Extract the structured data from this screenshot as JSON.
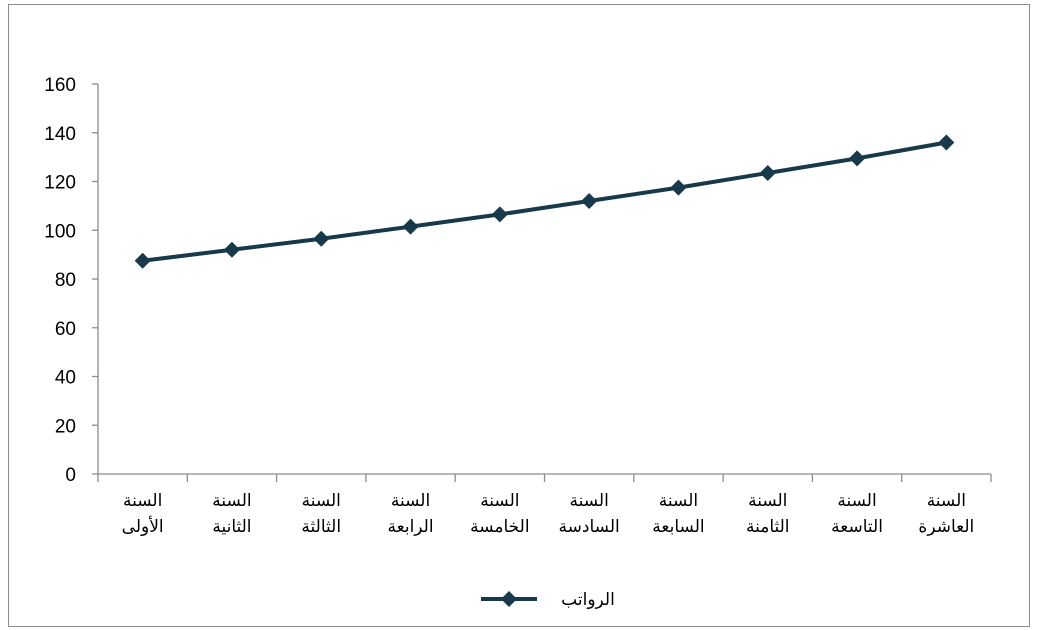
{
  "chart_data": {
    "type": "line",
    "categories": [
      [
        "السنة",
        "الأولى"
      ],
      [
        "السنة",
        "الثانية"
      ],
      [
        "السنة",
        "الثالثة"
      ],
      [
        "السنة",
        "الرابعة"
      ],
      [
        "السنة",
        "الخامسة"
      ],
      [
        "السنة",
        "السادسة"
      ],
      [
        "السنة",
        "السابعة"
      ],
      [
        "السنة",
        "الثامنة"
      ],
      [
        "السنة",
        "التاسعة"
      ],
      [
        "السنة",
        "العاشرة"
      ]
    ],
    "series": [
      {
        "name": "الرواتب",
        "values": [
          87.5,
          92,
          96.5,
          101.5,
          106.5,
          112,
          117.5,
          123.5,
          129.5,
          136
        ],
        "color": "#17394a"
      }
    ],
    "ylim": [
      0,
      160
    ],
    "yticks": [
      0,
      20,
      40,
      60,
      80,
      100,
      120,
      140,
      160
    ],
    "grid": false,
    "legend_position": "bottom"
  }
}
